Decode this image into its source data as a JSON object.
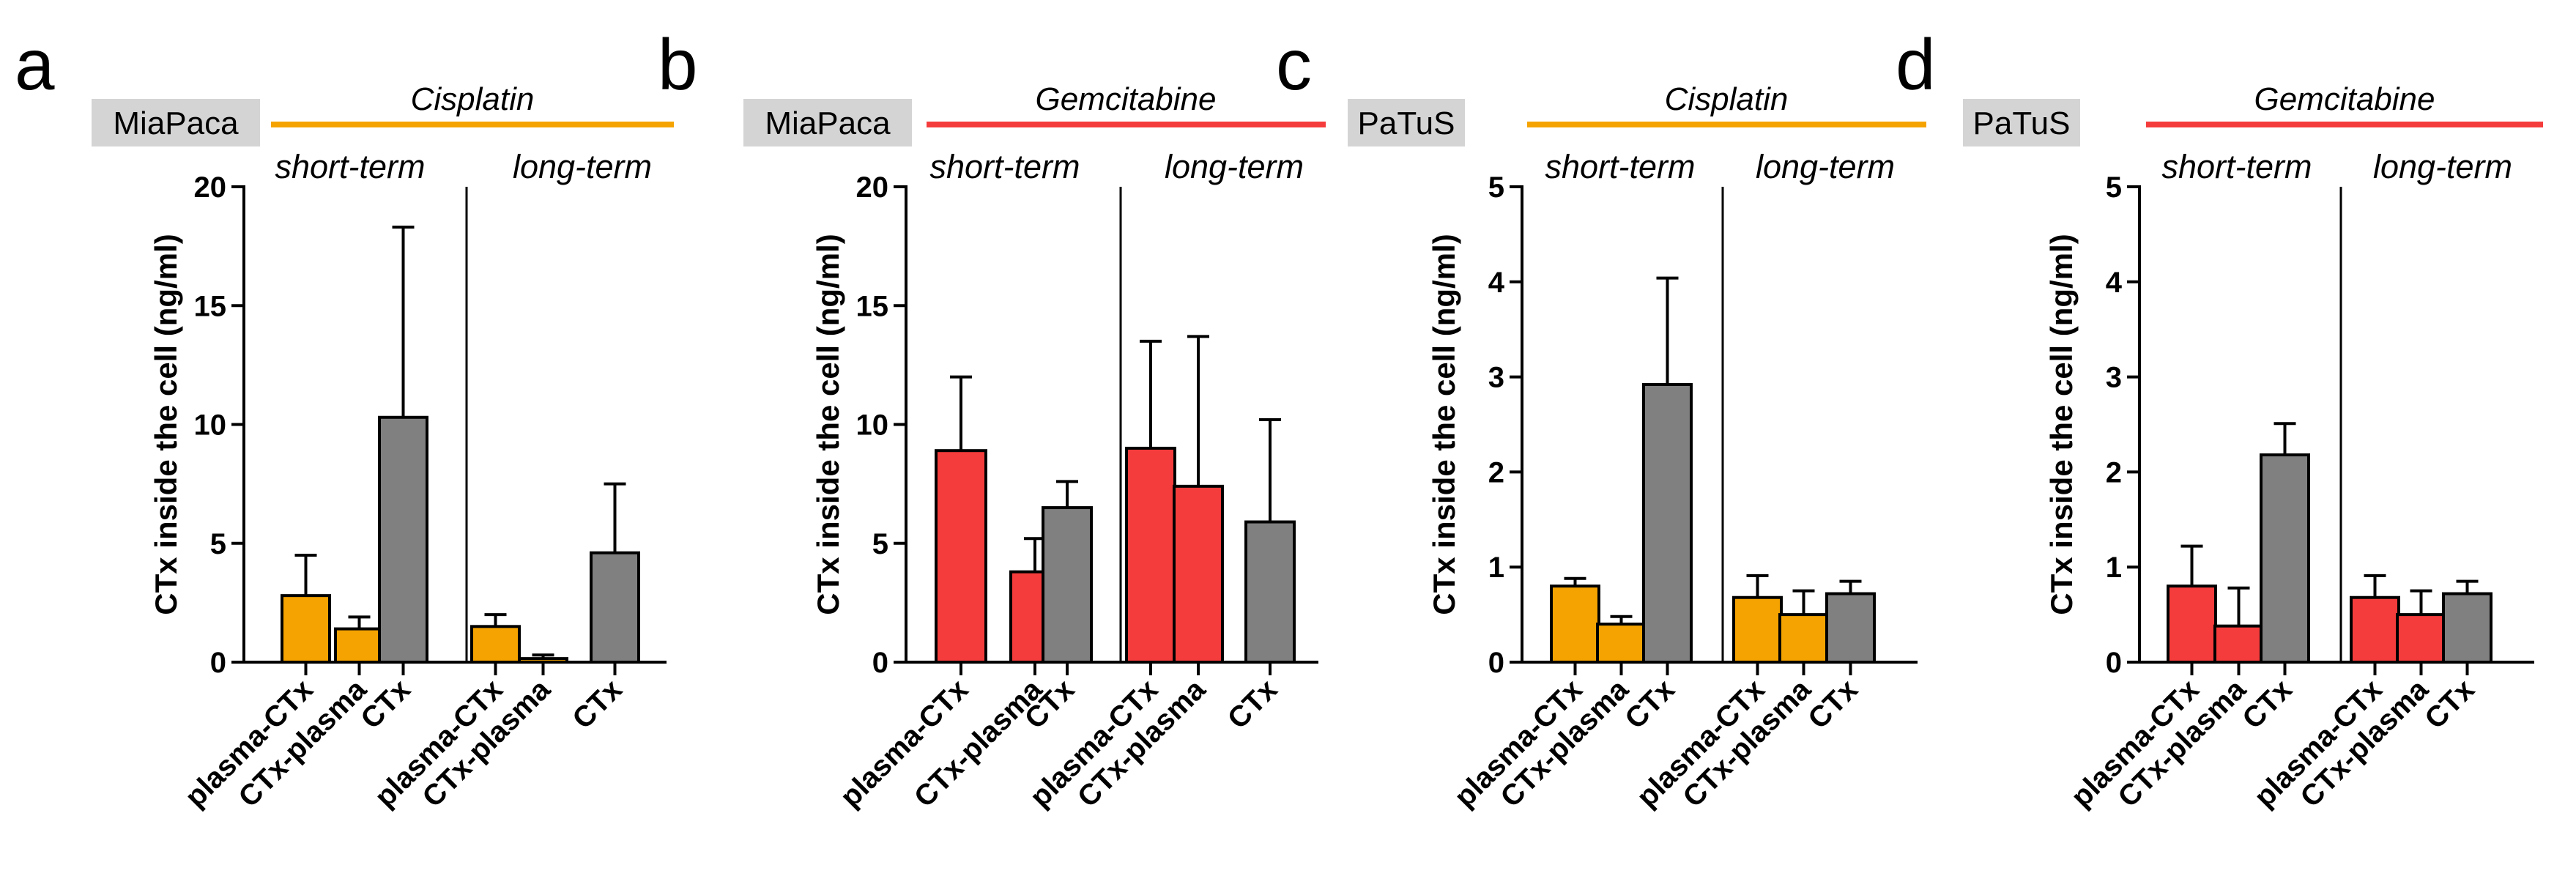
{
  "colors": {
    "cisplatin": "#F5A300",
    "gemcitabine": "#F53C3C",
    "ctx": "#808080",
    "label_box": "#D4D4D4"
  },
  "chart_data": [
    {
      "type": "bar",
      "panel": "a",
      "cell_line": "MiaPaca",
      "drug": "Cisplatin",
      "ylabel": "CTx inside the cell (ng/ml)",
      "ylim": [
        0,
        20
      ],
      "yticks": [
        0,
        5,
        10,
        15,
        20
      ],
      "groups": [
        "short-term",
        "long-term"
      ],
      "categories": [
        "plasma-CTx",
        "CTx-plasma",
        "CTx"
      ],
      "series": [
        {
          "name": "short-term",
          "values": [
            2.8,
            1.4,
            10.3
          ],
          "errors": [
            1.7,
            0.5,
            8.0
          ]
        },
        {
          "name": "long-term",
          "values": [
            1.5,
            0.15,
            4.6
          ],
          "errors": [
            0.5,
            0.15,
            2.9
          ]
        }
      ]
    },
    {
      "type": "bar",
      "panel": "b",
      "cell_line": "MiaPaca",
      "drug": "Gemcitabine",
      "ylabel": "CTx inside the cell (ng/ml)",
      "ylim": [
        0,
        20
      ],
      "yticks": [
        0,
        5,
        10,
        15,
        20
      ],
      "groups": [
        "short-term",
        "long-term"
      ],
      "categories": [
        "plasma-CTx",
        "CTx-plasma",
        "CTx"
      ],
      "series": [
        {
          "name": "short-term",
          "values": [
            8.9,
            3.8,
            6.5
          ],
          "errors": [
            3.1,
            1.4,
            1.1
          ]
        },
        {
          "name": "long-term",
          "values": [
            9.0,
            7.4,
            5.9
          ],
          "errors": [
            4.5,
            6.3,
            4.3
          ]
        }
      ]
    },
    {
      "type": "bar",
      "panel": "c",
      "cell_line": "PaTuS",
      "drug": "Cisplatin",
      "ylabel": "CTx inside the cell (ng/ml)",
      "ylim": [
        0,
        5
      ],
      "yticks": [
        0,
        1,
        2,
        3,
        4,
        5
      ],
      "groups": [
        "short-term",
        "long-term"
      ],
      "categories": [
        "plasma-CTx",
        "CTx-plasma",
        "CTx"
      ],
      "series": [
        {
          "name": "short-term",
          "values": [
            0.8,
            0.4,
            2.92
          ],
          "errors": [
            0.08,
            0.08,
            1.12
          ]
        },
        {
          "name": "long-term",
          "values": [
            0.68,
            0.5,
            0.72
          ],
          "errors": [
            0.23,
            0.25,
            0.13
          ]
        }
      ]
    },
    {
      "type": "bar",
      "panel": "d",
      "cell_line": "PaTuS",
      "drug": "Gemcitabine",
      "ylabel": "CTx inside the cell (ng/ml)",
      "ylim": [
        0,
        5
      ],
      "yticks": [
        0,
        1,
        2,
        3,
        4,
        5
      ],
      "groups": [
        "short-term",
        "long-term"
      ],
      "categories": [
        "plasma-CTx",
        "CTx-plasma",
        "CTx"
      ],
      "series": [
        {
          "name": "short-term",
          "values": [
            0.8,
            0.38,
            2.18
          ],
          "errors": [
            0.42,
            0.4,
            0.33
          ]
        },
        {
          "name": "long-term",
          "values": [
            0.68,
            0.5,
            0.72
          ],
          "errors": [
            0.23,
            0.25,
            0.13
          ]
        }
      ]
    }
  ]
}
